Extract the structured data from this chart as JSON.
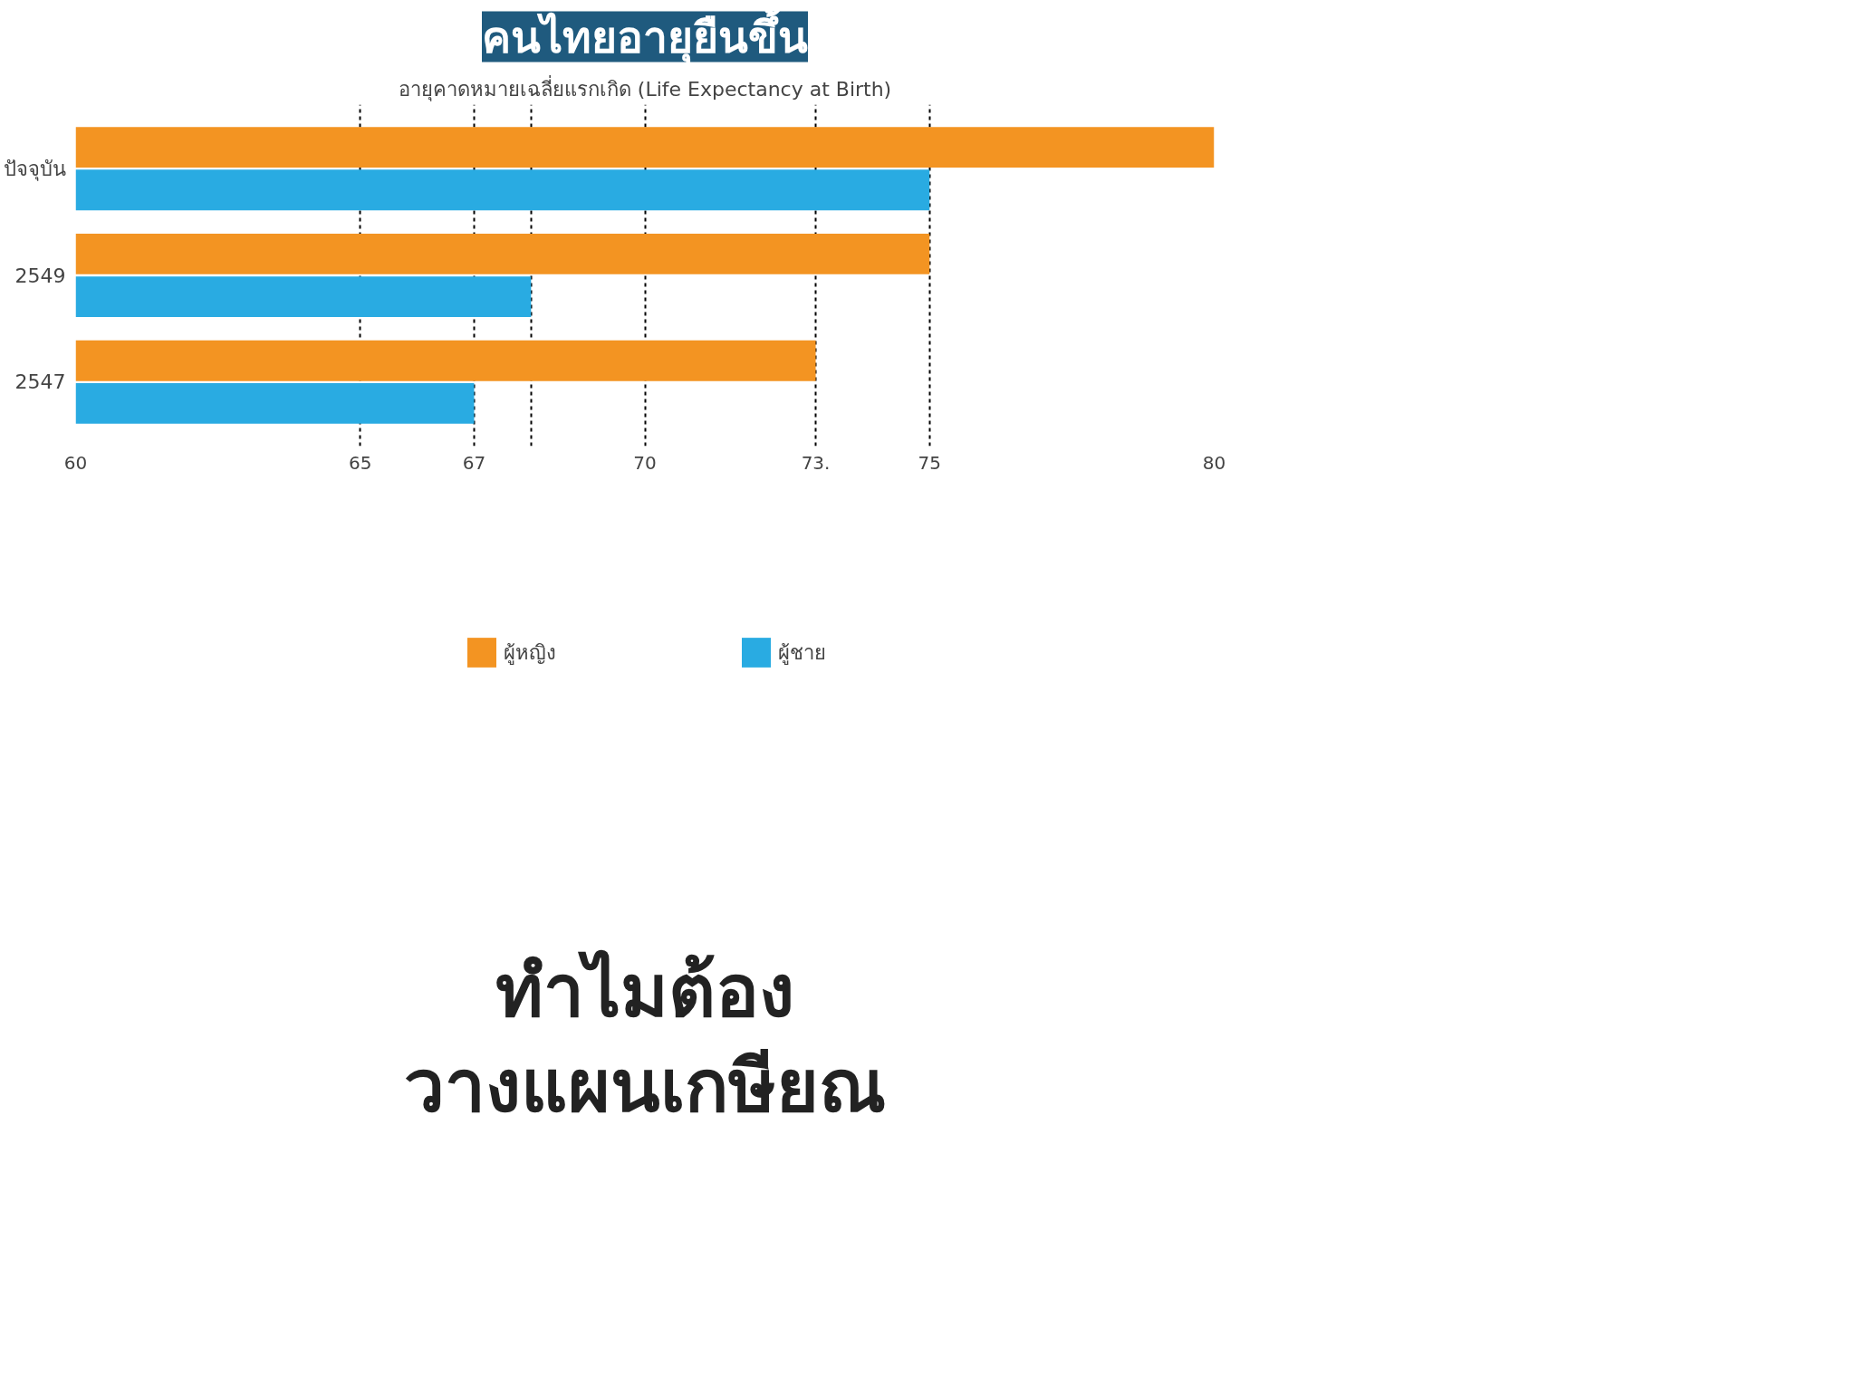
{
  "chart_data": {
    "type": "bar",
    "orientation": "horizontal",
    "title": "คนไทยอายุยืนขึ้น",
    "subtitle": "อายุคาดหมายเฉลี่ยแรกเกิด (Life Expectancy at Birth)",
    "categories": [
      "ปัจจุบัน",
      "2549",
      "2547"
    ],
    "series": [
      {
        "name": "ผู้หญิง",
        "color": "#f39422",
        "values": [
          80,
          75,
          73
        ]
      },
      {
        "name": "ผู้ชาย",
        "color": "#29abe2",
        "values": [
          75,
          68,
          67
        ]
      }
    ],
    "xlim": [
      60,
      80
    ],
    "xticks": [
      60,
      65,
      67,
      {
        "value": 68,
        "label": null
      },
      70,
      {
        "value": 73,
        "label": "73."
      },
      75,
      80
    ],
    "grid": "x",
    "legend": "bottom",
    "annotations": [
      "ทำไมต้อง",
      "วางแผนเกษียณ"
    ]
  }
}
